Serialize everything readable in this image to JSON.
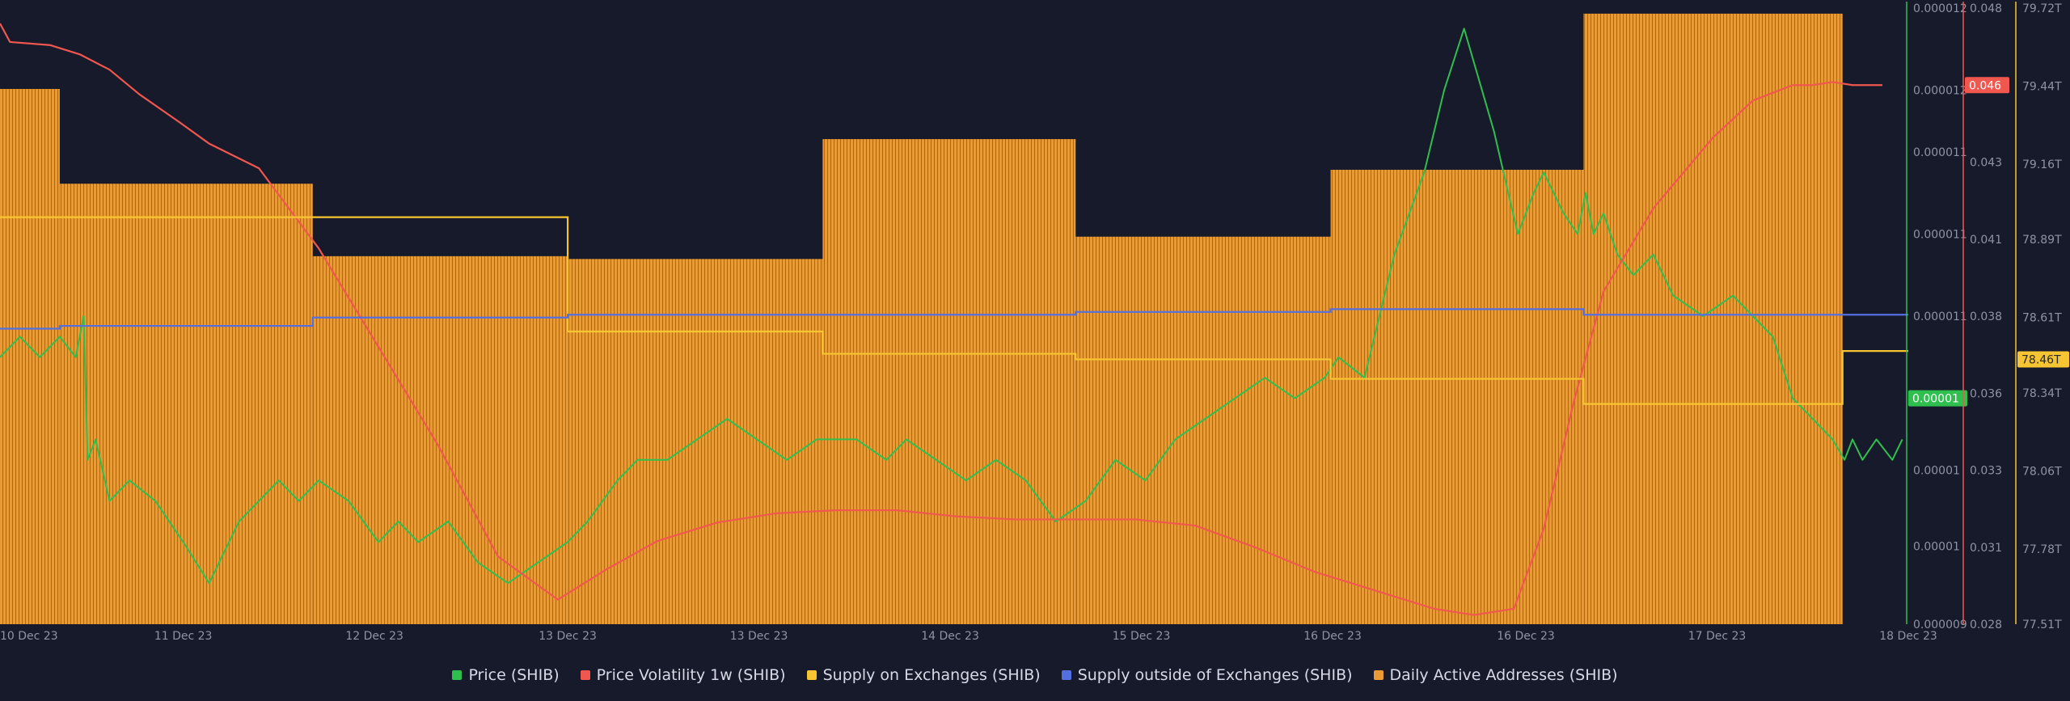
{
  "colors": {
    "background": "#171a2a",
    "price": "#2fbf4f",
    "volatility": "#f0574e",
    "supply_on": "#f7c531",
    "supply_outside": "#5470e0",
    "active_addresses": "#e89a36",
    "axis_text": "#8e93a6"
  },
  "chart_data": {
    "type": "line",
    "title": "",
    "legend_position": "bottom",
    "grid": false,
    "x": {
      "range": [
        "10 Dec 23",
        "18 Dec 23"
      ],
      "tick_labels": [
        "10 Dec 23",
        "11 Dec 23",
        "12 Dec 23",
        "13 Dec 23",
        "13 Dec 23",
        "14 Dec 23",
        "15 Dec 23",
        "16 Dec 23",
        "16 Dec 23",
        "17 Dec 23",
        "18 Dec 23"
      ],
      "tick_positions_days": [
        0,
        0.92,
        1.88,
        2.85,
        3.81,
        4.77,
        5.73,
        6.69,
        7.66,
        8.62,
        9.58
      ]
    },
    "axes": {
      "price": {
        "ylim": [
          9e-06,
          1.2e-05
        ],
        "tick_labels": [
          "0.000012",
          "0.000012",
          "0.000011",
          "0.000011",
          "0.000011",
          "0.00001",
          "0.00001",
          "0.00001",
          "0.000009"
        ],
        "tick_values": [
          1.2e-05,
          1.16e-05,
          1.13e-05,
          1.09e-05,
          1.05e-05,
          1.01e-05,
          9.75e-06,
          9.38e-06,
          9e-06
        ],
        "current_label": "0.00001",
        "current_value": 1.01e-05
      },
      "volatility": {
        "ylim": [
          0.028,
          0.048
        ],
        "tick_labels": [
          "0.048",
          "0.046",
          "0.043",
          "0.041",
          "0.038",
          "0.036",
          "0.033",
          "0.031",
          "0.028"
        ],
        "tick_values": [
          0.048,
          0.0455,
          0.043,
          0.0405,
          0.038,
          0.0355,
          0.033,
          0.0305,
          0.028
        ],
        "current_label": "0.046",
        "current_value": 0.0455
      },
      "supply": {
        "ylim": [
          77.51,
          79.72
        ],
        "tick_labels": [
          "79.72T",
          "79.44T",
          "79.16T",
          "78.89T",
          "78.61T",
          "78.34T",
          "78.06T",
          "77.78T",
          "77.51T"
        ],
        "tick_values": [
          79.72,
          79.44,
          79.16,
          78.89,
          78.61,
          78.34,
          78.06,
          77.78,
          77.51
        ],
        "current_label": "78.46T",
        "current_value": 78.46
      }
    },
    "series": [
      {
        "name": "Price (SHIB)",
        "axis": "price",
        "style": "line",
        "x": [
          0,
          0.1,
          0.2,
          0.3,
          0.38,
          0.42,
          0.44,
          0.48,
          0.55,
          0.65,
          0.78,
          0.92,
          1.05,
          1.2,
          1.3,
          1.4,
          1.5,
          1.6,
          1.75,
          1.9,
          2.0,
          2.1,
          2.25,
          2.4,
          2.55,
          2.7,
          2.85,
          2.95,
          3.1,
          3.2,
          3.35,
          3.5,
          3.65,
          3.8,
          3.95,
          4.1,
          4.2,
          4.3,
          4.45,
          4.55,
          4.7,
          4.85,
          5.0,
          5.15,
          5.3,
          5.45,
          5.6,
          5.75,
          5.9,
          6.05,
          6.2,
          6.35,
          6.5,
          6.65,
          6.72,
          6.85,
          7.0,
          7.15,
          7.25,
          7.35,
          7.5,
          7.62,
          7.7,
          7.75,
          7.85,
          7.92,
          7.96,
          8.0,
          8.05,
          8.12,
          8.2,
          8.3,
          8.4,
          8.55,
          8.7,
          8.8,
          8.9,
          9.0,
          9.1,
          9.2,
          9.26,
          9.3,
          9.35,
          9.42,
          9.5,
          9.55
        ],
        "y": [
          1.03e-05,
          1.04e-05,
          1.03e-05,
          1.04e-05,
          1.03e-05,
          1.05e-05,
          9.8e-06,
          9.9e-06,
          9.6e-06,
          9.7e-06,
          9.6e-06,
          9.4e-06,
          9.2e-06,
          9.5e-06,
          9.6e-06,
          9.7e-06,
          9.6e-06,
          9.7e-06,
          9.6e-06,
          9.4e-06,
          9.5e-06,
          9.4e-06,
          9.5e-06,
          9.3e-06,
          9.2e-06,
          9.3e-06,
          9.4e-06,
          9.5e-06,
          9.7e-06,
          9.8e-06,
          9.8e-06,
          9.9e-06,
          1e-05,
          9.9e-06,
          9.8e-06,
          9.9e-06,
          9.9e-06,
          9.9e-06,
          9.8e-06,
          9.9e-06,
          9.8e-06,
          9.7e-06,
          9.8e-06,
          9.7e-06,
          9.5e-06,
          9.6e-06,
          9.8e-06,
          9.7e-06,
          9.9e-06,
          1e-05,
          1.01e-05,
          1.02e-05,
          1.01e-05,
          1.02e-05,
          1.03e-05,
          1.02e-05,
          1.08e-05,
          1.12e-05,
          1.16e-05,
          1.19e-05,
          1.14e-05,
          1.09e-05,
          1.11e-05,
          1.12e-05,
          1.1e-05,
          1.09e-05,
          1.11e-05,
          1.09e-05,
          1.1e-05,
          1.08e-05,
          1.07e-05,
          1.08e-05,
          1.06e-05,
          1.05e-05,
          1.06e-05,
          1.05e-05,
          1.04e-05,
          1.01e-05,
          1e-05,
          9.9e-06,
          9.8e-06,
          9.9e-06,
          9.8e-06,
          9.9e-06,
          9.8e-06,
          9.9e-06
        ]
      },
      {
        "name": "Price Volatility 1w (SHIB)",
        "axis": "volatility",
        "style": "line",
        "x": [
          0,
          0.05,
          0.25,
          0.4,
          0.55,
          0.7,
          0.9,
          1.05,
          1.3,
          1.6,
          1.9,
          2.2,
          2.5,
          2.8,
          3.05,
          3.3,
          3.6,
          3.9,
          4.2,
          4.5,
          4.8,
          5.1,
          5.4,
          5.7,
          6.0,
          6.3,
          6.6,
          6.9,
          7.2,
          7.4,
          7.6,
          7.75,
          7.9,
          8.05,
          8.3,
          8.6,
          8.8,
          9.0,
          9.1,
          9.2,
          9.3,
          9.45
        ],
        "y": [
          0.0475,
          0.0469,
          0.0468,
          0.0465,
          0.046,
          0.0452,
          0.0443,
          0.0436,
          0.0428,
          0.0402,
          0.037,
          0.0338,
          0.0302,
          0.0288,
          0.0298,
          0.0307,
          0.0313,
          0.0316,
          0.0317,
          0.0317,
          0.0315,
          0.0314,
          0.0314,
          0.0314,
          0.0312,
          0.0305,
          0.0297,
          0.0291,
          0.0285,
          0.0283,
          0.0285,
          0.0311,
          0.0352,
          0.0388,
          0.0415,
          0.0438,
          0.045,
          0.0455,
          0.0455,
          0.0456,
          0.0455,
          0.0455
        ]
      },
      {
        "name": "Supply on Exchanges (SHIB)",
        "axis": "supply",
        "style": "step",
        "x": [
          0,
          1.57,
          2.85,
          4.13,
          5.4,
          6.68,
          7.95,
          9.25,
          9.58
        ],
        "y": [
          78.97,
          78.97,
          78.56,
          78.48,
          78.46,
          78.39,
          78.3,
          78.49,
          78.49
        ]
      },
      {
        "name": "Supply outside of Exchanges (SHIB)",
        "axis": "supply",
        "style": "step",
        "x": [
          0,
          0.3,
          1.57,
          2.85,
          4.13,
          5.4,
          6.68,
          7.95,
          9.58
        ],
        "y": [
          78.57,
          78.58,
          78.61,
          78.62,
          78.62,
          78.63,
          78.64,
          78.62,
          78.62
        ]
      },
      {
        "name": "Daily Active Addresses (SHIB)",
        "axis": "supply",
        "style": "bar-step",
        "x": [
          0,
          0.3,
          1.57,
          2.85,
          4.13,
          5.4,
          6.68,
          7.95,
          9.25
        ],
        "x_end": [
          0.3,
          1.57,
          2.85,
          4.13,
          5.4,
          6.68,
          7.95,
          9.25,
          9.25
        ],
        "y": [
          79.43,
          79.09,
          78.83,
          78.82,
          79.25,
          78.9,
          79.14,
          79.7,
          0
        ]
      }
    ]
  }
}
